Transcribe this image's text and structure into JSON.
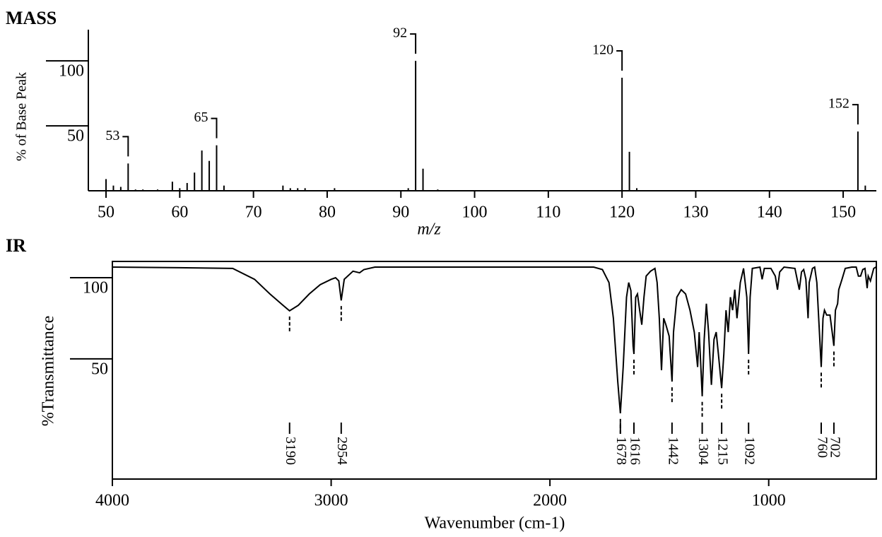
{
  "chart_data": [
    {
      "type": "bar",
      "title": "MASS",
      "x_label": "m/z",
      "y_label": "% of Base Peak",
      "color": "#000000",
      "x": [
        50,
        51,
        52,
        53,
        54,
        55,
        57,
        59,
        60,
        61,
        62,
        63,
        64,
        65,
        66,
        74,
        75,
        76,
        77,
        81,
        91,
        92,
        93,
        95,
        120,
        121,
        122,
        152,
        153
      ],
      "values": [
        9,
        4,
        3,
        21,
        1,
        1,
        1,
        7,
        2,
        6,
        14,
        31,
        23,
        35,
        4,
        4,
        2,
        2,
        2,
        2,
        2,
        100,
        17,
        1,
        87,
        30,
        2,
        45.6,
        4
      ],
      "peak_labels": [
        53,
        65,
        92,
        120,
        152
      ],
      "xlim": [
        47.6,
        154.5
      ],
      "ylim": [
        0,
        124
      ],
      "xticks": [
        50,
        60,
        70,
        80,
        90,
        100,
        110,
        120,
        130,
        140,
        150
      ],
      "yticks": [
        50,
        100
      ]
    },
    {
      "type": "line",
      "title": "IR",
      "x_label": "Wavenumber (cm-1)",
      "y_label": "%Transmittance",
      "color": "#000000",
      "x": [
        4000,
        3600,
        3450,
        3350,
        3280,
        3220,
        3190,
        3150,
        3100,
        3050,
        3000,
        2980,
        2965,
        2954,
        2940,
        2900,
        2870,
        2850,
        2800,
        2000,
        1800,
        1760,
        1730,
        1710,
        1690,
        1678,
        1665,
        1650,
        1640,
        1630,
        1620,
        1616,
        1608,
        1600,
        1590,
        1580,
        1570,
        1560,
        1540,
        1520,
        1510,
        1500,
        1490,
        1480,
        1470,
        1455,
        1442,
        1435,
        1420,
        1400,
        1380,
        1360,
        1340,
        1325,
        1318,
        1310,
        1304,
        1295,
        1285,
        1275,
        1262,
        1250,
        1240,
        1230,
        1215,
        1205,
        1195,
        1185,
        1175,
        1165,
        1155,
        1145,
        1130,
        1115,
        1100,
        1092,
        1085,
        1075,
        1040,
        1030,
        1020,
        990,
        970,
        960,
        950,
        930,
        880,
        860,
        850,
        840,
        830,
        820,
        815,
        800,
        790,
        780,
        770,
        760,
        752,
        745,
        735,
        720,
        710,
        702,
        695,
        685,
        680,
        665,
        650,
        620,
        600,
        590,
        580,
        570,
        560,
        550,
        545,
        535,
        520,
        510
      ],
      "values": [
        106.5,
        106,
        105.7,
        99,
        90,
        83,
        79.6,
        83,
        90,
        95.7,
        99,
        100,
        98,
        86,
        99,
        104,
        103,
        105,
        106.5,
        106.5,
        106.5,
        105,
        97,
        75,
        36,
        16.5,
        45,
        88,
        97,
        92,
        58,
        53,
        88,
        90,
        80,
        71,
        88,
        101,
        104,
        105.7,
        97,
        75,
        43,
        75,
        71,
        64,
        36,
        66.5,
        88,
        92.6,
        90,
        80,
        66.5,
        45,
        66.5,
        45,
        27,
        62,
        84,
        66.5,
        34,
        62,
        66.5,
        53,
        32,
        53,
        80,
        66.5,
        88,
        80,
        92.6,
        75,
        97,
        105.7,
        88,
        53,
        88,
        105.7,
        106.5,
        99,
        105.7,
        105.7,
        101,
        92.6,
        103.5,
        106.5,
        105.7,
        92.6,
        103.5,
        105,
        99,
        75,
        97,
        105.7,
        106.5,
        97,
        71,
        45,
        75,
        80,
        77,
        77,
        66.5,
        58,
        80,
        84,
        92.6,
        99,
        105.7,
        106.5,
        106.5,
        101,
        101,
        105,
        105.7,
        93.5,
        101,
        98,
        105.7,
        106.5
      ],
      "peak_labels": [
        3190,
        2954,
        1678,
        1616,
        1442,
        1304,
        1215,
        1092,
        760,
        702
      ],
      "xlim": [
        4000,
        508
      ],
      "ylim": [
        -24,
        110
      ],
      "xticks": [
        4000,
        3000,
        2000,
        1000
      ],
      "yticks": [
        50,
        100
      ]
    }
  ]
}
